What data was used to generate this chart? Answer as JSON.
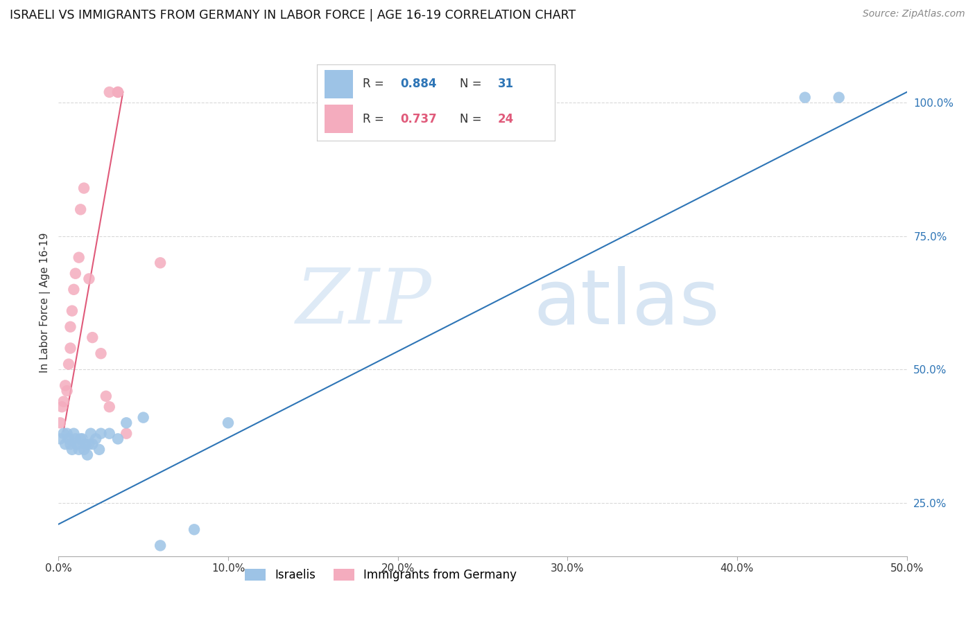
{
  "title": "ISRAELI VS IMMIGRANTS FROM GERMANY IN LABOR FORCE | AGE 16-19 CORRELATION CHART",
  "source": "Source: ZipAtlas.com",
  "ylabel": "In Labor Force | Age 16-19",
  "xlim": [
    0.0,
    0.5
  ],
  "ylim": [
    0.15,
    1.1
  ],
  "yticks": [
    0.25,
    0.5,
    0.75,
    1.0
  ],
  "ytick_labels": [
    "25.0%",
    "50.0%",
    "75.0%",
    "100.0%"
  ],
  "xticks": [
    0.0,
    0.1,
    0.2,
    0.3,
    0.4,
    0.5
  ],
  "xtick_labels": [
    "0.0%",
    "10.0%",
    "20.0%",
    "30.0%",
    "40.0%",
    "50.0%"
  ],
  "blue_R": 0.884,
  "blue_N": 31,
  "pink_R": 0.737,
  "pink_N": 24,
  "blue_color": "#9DC3E6",
  "pink_color": "#F4ACBE",
  "blue_line_color": "#2E75B6",
  "pink_line_color": "#E05A7A",
  "background_color": "#ffffff",
  "grid_color": "#d9d9d9",
  "blue_scatter_x": [
    0.001,
    0.003,
    0.004,
    0.005,
    0.006,
    0.007,
    0.008,
    0.009,
    0.01,
    0.011,
    0.012,
    0.013,
    0.014,
    0.015,
    0.016,
    0.017,
    0.018,
    0.019,
    0.02,
    0.022,
    0.024,
    0.025,
    0.03,
    0.035,
    0.04,
    0.05,
    0.06,
    0.08,
    0.1,
    0.44,
    0.46
  ],
  "blue_scatter_y": [
    0.37,
    0.38,
    0.36,
    0.38,
    0.37,
    0.36,
    0.35,
    0.38,
    0.37,
    0.36,
    0.35,
    0.37,
    0.37,
    0.35,
    0.36,
    0.34,
    0.36,
    0.38,
    0.36,
    0.37,
    0.35,
    0.38,
    0.38,
    0.37,
    0.4,
    0.41,
    0.17,
    0.2,
    0.4,
    1.01,
    1.01
  ],
  "pink_scatter_x": [
    0.001,
    0.002,
    0.003,
    0.004,
    0.005,
    0.006,
    0.007,
    0.007,
    0.008,
    0.009,
    0.01,
    0.012,
    0.013,
    0.015,
    0.018,
    0.02,
    0.025,
    0.028,
    0.03,
    0.03,
    0.035,
    0.035,
    0.04,
    0.06
  ],
  "pink_scatter_y": [
    0.4,
    0.43,
    0.44,
    0.47,
    0.46,
    0.51,
    0.54,
    0.58,
    0.61,
    0.65,
    0.68,
    0.71,
    0.8,
    0.84,
    0.67,
    0.56,
    0.53,
    0.45,
    0.43,
    1.02,
    1.02,
    1.02,
    0.38,
    0.7
  ],
  "blue_line_x": [
    0.0,
    0.5
  ],
  "blue_line_y": [
    0.21,
    1.02
  ],
  "pink_line_x": [
    0.003,
    0.038
  ],
  "pink_line_y": [
    0.385,
    1.02
  ]
}
